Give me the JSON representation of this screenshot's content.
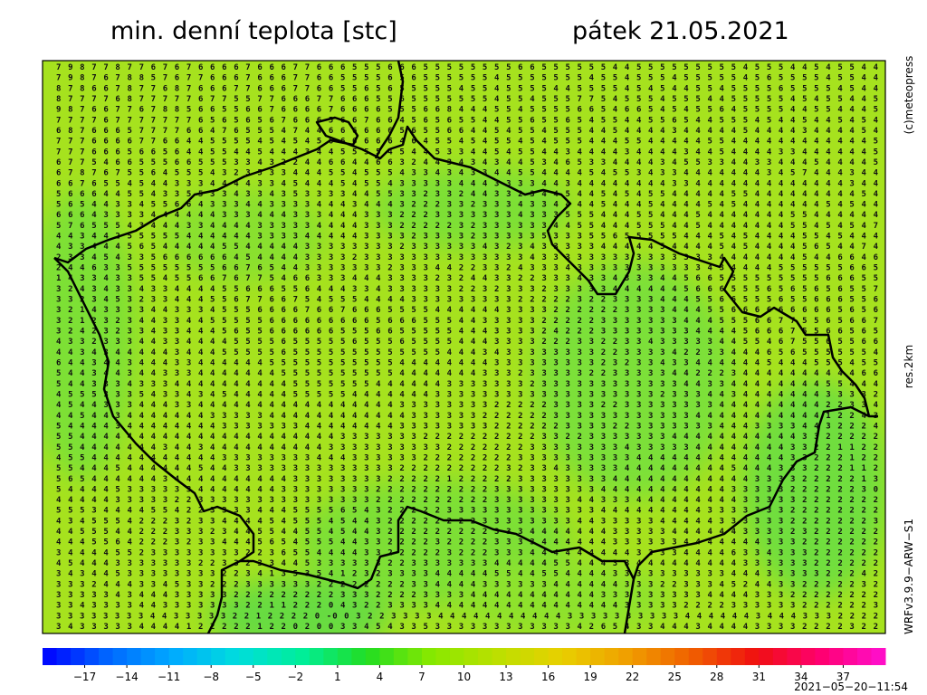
{
  "header": {
    "title": "min. denní teplota [stc]",
    "date": "pátek 21.05.2021"
  },
  "side_labels": {
    "copyright": "(c)meteopress",
    "resolution": "res.2km",
    "model": "WRFv3.9.9−ARW−S1"
  },
  "timestamp": "2021−05−20−11:54",
  "map": {
    "grid_rows": [
      "7 9 8 7 7 8 7 7 6 7 6 7 6 6 6 6 7 6 6 6 7 7 6 6 6 5 5 5 6 6 6 5 5 5 5 5 5 5 5 6 6 5 5 5 5 5 5 4 4 5 5 5 5 5 5 5 5 5 4 5 5 5 4 4 5 4 5 5 4 4",
      "7 9 8 7 6 7 8 8 5 7 6 7 7 6 6 6 7 6 6 6 7 7 6 6 5 5 5 5 6 5 6 5 5 5 5 5 5 4 5 5 5 5 5 5 5 4 5 5 4 5 5 5 4 5 5 5 5 5 4 5 6 5 5 5 5 4 5 5 4 4",
      "8 7 8 6 6 7 8 7 7 6 8 7 6 6 6 7 7 6 6 6 7 7 6 6 5 5 6 5 6 5 5 5 5 5 4 5 5 4 5 5 5 5 4 4 5 5 5 5 4 5 4 5 4 4 5 5 4 5 5 5 5 6 5 5 5 5 4 5 4 4",
      "8 7 7 7 7 6 8 7 7 7 7 7 6 7 7 5 5 7 7 6 6 6 7 7 6 6 6 5 5 6 5 5 5 5 5 5 5 4 5 5 4 5 5 5 7 7 5 4 5 5 5 4 5 5 5 4 4 5 5 5 5 5 4 5 4 5 5 4 4 5",
      "9 8 7 6 6 7 7 6 7 8 8 5 6 6 5 5 6 6 7 6 6 6 6 7 6 6 6 6 5 5 5 6 6 8 4 4 4 5 5 4 5 5 5 5 6 6 5 4 6 6 5 4 5 4 5 5 6 4 5 5 5 5 4 4 5 5 4 4 4 5",
      "7 7 7 7 6 7 7 7 7 7 7 7 6 5 6 5 6 5 6 7 6 6 6 5 6 6 7 6 6 4 5 6 5 6 5 5 4 4 5 5 6 5 5 6 5 4 5 5 4 4 5 5 6 5 4 4 5 5 5 4 5 4 4 5 4 4 5 4 5 4",
      "6 8 7 6 6 6 5 7 7 7 7 6 6 4 7 6 5 5 5 4 7 4 4 6 6 6 6 6 6 5 6 5 5 6 6 4 4 5 4 5 5 4 5 5 5 4 4 5 4 4 4 4 3 4 4 4 4 4 5 4 4 4 4 3 4 4 4 4 5 4",
      "7 7 7 6 6 6 6 7 7 6 6 4 4 5 5 5 5 4 5 4 5 4 5 6 6 6 6 6 6 4 6 4 5 5 4 5 4 5 5 4 5 4 5 5 5 4 4 4 5 5 4 4 4 4 4 5 5 4 4 4 4 4 4 4 4 4 4 4 4 5",
      "7 7 7 6 6 6 5 6 6 5 6 4 4 5 5 4 4 5 4 4 4 3 4 4 5 5 5 5 4 5 4 4 5 3 3 4 4 5 4 5 5 4 4 3 4 4 4 4 3 4 4 4 4 3 4 4 5 4 4 4 4 3 3 4 4 4 4 4 4 5",
      "6 7 7 5 4 6 6 5 5 5 6 6 5 5 5 3 3 4 3 2 2 4 4 6 6 4 4 6 6 3 2 4 4 3 4 3 4 3 4 4 5 3 4 6 5 3 3 4 4 4 4 3 4 5 5 3 3 4 4 3 3 4 4 4 5 4 4 4 4 5",
      "6 7 8 7 6 7 5 5 6 4 5 5 5 4 3 2 3 5 3 3 4 4 4 5 5 4 5 5 5 4 3 3 4 3 4 3 3 4 4 5 5 4 4 4 4 5 4 5 5 3 4 3 3 4 4 4 4 4 4 4 3 4 5 7 4 4 4 3 4 4",
      "6 6 7 6 5 5 4 5 4 4 3 3 3 4 4 4 4 3 3 4 5 4 4 4 5 4 5 5 4 3 3 3 3 3 4 4 4 3 3 3 3 4 4 3 4 4 4 4 4 4 4 4 3 3 4 4 4 4 4 4 4 4 4 4 4 4 4 3 4 4",
      "5 6 6 6 4 4 5 5 4 3 3 5 5 3 3 4 3 3 4 3 5 3 3 3 3 4 4 5 5 3 3 2 3 3 2 4 4 3 3 2 3 4 4 5 4 4 5 4 5 4 5 5 4 4 4 4 4 5 5 4 4 4 4 4 4 4 4 4 5 4",
      "5 6 5 4 4 3 3 4 5 5 6 6 4 3 3 3 4 4 3 3 3 3 4 4 4 3 4 4 4 3 2 2 2 3 3 2 3 3 3 4 3 3 4 4 4 4 5 4 4 4 5 4 4 4 4 5 4 5 4 4 4 4 4 4 4 5 4 5 4 4",
      "6 6 6 4 3 3 3 3 4 4 4 4 4 4 3 3 3 4 4 4 3 3 3 4 4 4 3 3 3 2 2 2 3 3 3 3 3 3 3 4 3 3 3 5 5 5 4 4 4 5 5 4 4 4 5 4 4 4 4 4 4 4 5 5 4 4 4 4 4 4",
      "5 7 6 5 5 5 4 3 4 4 4 3 3 4 4 4 4 3 3 3 3 3 4 4 4 4 3 3 3 2 2 2 2 2 3 2 3 3 3 3 3 3 4 4 5 5 4 4 4 5 5 5 4 4 5 4 4 4 4 4 4 4 5 5 4 5 4 5 4 7",
      "4 4 3 4 4 2 5 5 5 5 5 4 4 4 4 4 4 3 3 3 3 4 4 4 4 4 3 3 3 3 2 3 3 3 3 2 3 3 3 3 3 5 3 3 3 5 5 6 5 5 5 5 5 4 4 4 5 4 5 4 4 4 4 5 5 4 5 4 4 4",
      "4 3 3 4 4 4 5 6 5 4 4 4 4 4 5 5 4 4 4 4 4 3 3 3 3 3 3 3 3 2 3 3 3 3 3 3 4 3 2 3 4 3 3 3 3 3 4 4 4 4 4 5 4 4 4 4 5 4 5 4 4 4 4 5 6 5 4 4 7 4",
      "2 3 3 4 5 4 3 3 5 6 6 6 6 6 6 4 5 4 4 4 4 3 3 3 3 2 3 3 3 3 3 3 3 3 3 3 3 3 3 3 4 3 3 3 3 3 3 3 3 3 3 3 3 3 3 3 4 4 4 4 4 4 4 5 4 4 6 6 4 6",
      "2 4 4 6 3 3 5 5 5 5 5 5 5 5 6 6 7 6 5 4 4 3 3 3 3 3 3 3 2 3 3 3 4 4 2 2 3 3 2 4 3 3 3 4 3 3 3 3 3 3 3 3 3 3 3 4 3 4 4 4 4 5 5 5 5 5 5 6 6 5",
      "1 4 3 3 4 3 3 5 5 4 5 5 6 6 7 6 7 7 5 4 6 6 3 3 3 4 4 4 3 3 3 3 2 3 2 4 4 3 3 2 2 3 3 3 4 3 3 4 3 3 3 4 4 5 6 6 5 5 5 5 5 5 5 5 5 6 6 6 5 5",
      "3 2 4 3 4 3 3 4 3 3 4 4 4 4 5 5 6 6 6 5 5 6 4 4 4 3 3 4 3 3 3 3 3 3 2 2 3 2 3 3 3 2 3 3 3 3 3 4 4 4 4 4 4 5 6 6 6 5 5 5 6 5 6 5 6 5 6 5 5 7",
      "3 3 2 3 4 5 3 2 3 3 4 4 4 5 5 6 7 7 6 6 7 5 4 5 5 5 4 4 4 4 3 3 3 3 3 3 3 3 3 2 2 2 2 2 3 2 2 3 3 3 3 4 4 4 5 5 6 6 5 5 5 6 5 5 6 6 6 5 5 6",
      "3 2 1 4 3 3 3 3 4 4 3 3 3 4 5 5 5 6 6 6 6 7 6 6 7 6 6 6 5 5 5 5 4 4 4 4 4 4 3 3 3 3 2 2 2 2 2 2 3 3 3 3 4 4 4 5 5 6 6 6 6 6 6 6 6 6 5 6 5 6",
      "3 2 1 2 3 2 3 4 4 3 3 4 4 5 5 5 5 5 6 6 6 6 6 6 6 6 6 5 6 6 6 5 5 5 4 4 3 3 3 3 3 2 2 2 2 2 3 3 3 3 3 3 3 4 4 4 5 5 5 6 6 7 7 5 5 6 5 6 6 7",
      "3 2 4 2 3 2 3 3 4 3 3 4 4 4 5 6 5 5 6 6 6 6 6 6 5 5 5 6 6 5 5 5 5 5 4 4 4 3 3 3 3 2 4 2 2 2 3 3 3 3 3 3 3 3 4 4 4 4 5 6 6 6 7 5 5 6 6 5 6 5",
      "4 3 3 2 3 3 3 4 4 3 3 4 4 4 4 5 5 5 5 6 5 5 5 5 5 6 5 5 5 6 5 5 5 5 4 4 4 3 3 3 3 2 2 2 3 3 2 2 3 3 4 3 3 3 3 3 4 4 5 5 4 6 7 5 5 6 5 5 6 6",
      "4 4 3 4 3 4 4 4 4 4 3 4 4 4 5 5 5 5 5 6 5 5 5 5 5 5 5 5 5 5 5 5 5 4 4 4 3 4 3 3 3 3 3 3 3 3 2 2 3 3 3 3 4 2 2 3 3 4 4 4 6 5 6 5 5 5 5 5 5 4",
      "6 4 4 3 4 4 3 4 4 4 3 3 4 4 4 4 4 4 5 5 5 5 5 5 5 5 5 5 5 4 4 4 4 4 4 4 4 3 3 3 3 3 3 3 3 3 2 3 2 3 3 4 3 3 4 4 4 4 4 4 5 4 4 4 5 5 5 4 5 5",
      "5 4 4 3 4 4 3 4 4 3 3 3 4 4 4 4 4 4 4 5 5 5 5 5 5 5 5 5 5 4 4 4 4 4 4 4 3 3 3 2 3 3 3 3 3 2 2 3 3 3 3 3 4 4 2 2 2 3 4 4 4 4 4 4 4 4 4 4 6 6",
      "5 4 4 3 3 3 4 3 3 3 4 4 4 4 4 4 4 4 4 4 5 5 5 5 5 5 5 4 4 4 4 4 4 3 3 3 3 3 3 3 2 3 3 3 3 3 3 3 3 3 3 3 3 4 4 3 3 4 4 4 4 4 4 4 4 5 5 4 4 4",
      "4 5 5 5 3 3 3 5 4 3 3 4 3 4 5 4 4 4 4 4 5 5 5 5 5 4 4 4 4 4 4 4 3 3 3 3 3 3 3 3 3 3 3 3 3 3 3 3 3 3 3 2 3 3 3 4 4 3 4 4 4 4 4 4 4 3 3 3 3 2",
      "4 5 4 4 3 3 3 4 4 4 3 3 4 4 4 4 4 4 4 4 4 4 4 4 4 4 4 4 4 3 3 3 3 3 3 3 3 2 2 2 2 2 3 3 3 3 2 2 3 3 3 3 3 3 3 3 4 4 4 4 4 4 4 4 4 2 2 3 3 4",
      "4 4 5 4 4 3 4 4 4 4 4 4 4 3 3 3 3 3 4 4 4 4 4 4 4 4 4 4 4 4 3 3 3 3 3 3 2 2 2 2 2 2 3 3 3 3 3 3 3 3 3 3 3 3 4 4 4 4 4 4 4 4 4 4 4 1 2 2 4 3",
      "5 4 4 4 4 3 4 4 4 4 4 4 4 4 3 3 3 3 3 3 3 4 4 4 4 4 4 4 4 3 3 3 3 3 3 3 3 2 2 2 2 2 2 3 3 3 3 2 2 3 3 3 3 3 3 3 4 4 4 3 3 3 3 4 4 3 2 2 2 4",
      "5 5 4 4 4 4 4 4 4 4 4 4 4 4 4 4 4 4 4 4 4 4 4 4 3 3 3 3 3 3 3 2 2 2 2 2 2 2 2 2 2 3 3 2 2 3 3 3 3 3 3 3 4 4 4 4 4 4 4 4 4 4 4 3 3 2 2 2 2 2",
      "5 5 4 4 4 4 4 4 4 3 4 4 3 4 4 4 4 4 4 4 4 4 4 3 3 3 3 3 3 3 3 3 3 2 2 2 2 2 2 2 3 3 3 3 3 3 3 3 4 3 3 3 3 3 4 4 4 4 4 4 4 4 3 3 2 2 1 1 2 2",
      "4 5 5 4 4 4 4 4 4 4 4 4 4 4 3 3 3 3 3 3 3 3 4 4 4 3 3 3 3 3 3 2 2 2 2 2 2 2 2 3 3 3 3 3 3 3 3 3 3 4 4 4 4 4 4 4 4 4 4 4 4 4 3 3 2 2 2 1 2 2",
      "5 5 4 4 4 5 4 4 4 4 4 4 5 4 4 3 3 3 3 3 3 3 3 3 3 3 3 3 3 2 2 2 2 2 2 2 2 2 3 2 3 3 4 3 3 3 3 3 4 4 4 4 4 4 4 4 4 5 4 4 4 3 3 3 2 2 2 1 1 2",
      "5 6 5 4 4 4 4 4 4 3 4 4 4 4 4 4 4 4 4 4 3 3 3 3 3 3 3 3 2 2 2 2 2 1 2 2 2 2 2 3 3 3 3 3 3 3 3 4 4 4 4 4 4 4 4 4 4 4 4 3 3 3 3 2 2 2 2 2 1 3",
      "5 4 4 4 4 5 3 3 3 3 3 3 4 4 4 4 4 4 4 3 3 3 3 3 3 3 3 2 2 2 2 2 2 2 2 2 2 3 3 3 3 3 3 3 3 3 4 4 4 4 4 4 4 4 4 4 4 3 3 3 3 3 2 2 2 2 2 2 3 0",
      "4 4 4 4 4 3 3 3 3 3 2 2 3 3 3 3 3 3 3 3 3 3 3 3 3 3 3 2 2 2 2 2 2 2 2 2 2 3 3 3 3 3 3 3 4 4 3 3 3 4 4 4 4 4 4 4 4 4 3 3 3 3 3 2 2 2 2 2 2 2",
      "5 5 5 3 4 4 4 4 5 5 4 2 2 3 3 3 3 4 4 4 5 5 5 5 6 5 4 3 2 2 2 2 2 3 3 3 3 3 3 3 3 3 3 3 3 3 4 4 4 4 4 4 4 4 4 3 3 3 3 3 3 3 2 2 2 2 2 2 2 2",
      "4 3 4 5 5 5 4 2 2 2 3 2 3 3 4 4 4 4 5 4 5 5 5 4 5 4 4 3 2 2 2 2 2 2 2 2 3 3 3 3 3 3 3 3 4 4 3 3 3 3 3 4 4 4 4 4 3 3 3 3 3 3 2 2 2 2 2 2 2 3",
      "4 4 5 5 5 4 4 2 2 2 3 3 3 2 3 4 4 5 5 4 4 5 5 4 5 4 4 3 2 2 2 2 2 2 2 2 2 3 3 3 4 4 4 4 4 4 4 3 3 3 3 3 4 4 4 4 4 4 3 3 3 3 2 3 2 2 2 2 2 2",
      "4 4 4 5 5 6 4 2 2 2 3 2 3 3 4 4 4 5 6 5 4 5 5 5 4 4 3 3 2 2 2 2 3 2 2 2 2 3 3 3 3 4 4 4 4 4 4 3 3 3 3 3 3 4 4 4 4 4 4 4 3 3 3 2 2 2 2 2 2 2",
      "3 4 4 4 4 5 5 2 3 3 3 3 3 3 3 3 2 2 3 6 5 5 4 4 4 4 3 3 2 2 2 2 2 3 2 2 2 3 3 3 4 4 4 4 4 4 4 4 4 3 3 3 3 4 4 4 4 6 3 3 4 3 3 3 2 2 2 2 2 2",
      "4 5 4 4 4 3 3 3 3 3 3 3 2 2 3 3 2 3 3 4 4 5 3 3 3 3 3 3 2 2 3 3 3 3 3 3 3 4 4 4 4 4 5 5 4 4 4 3 3 4 4 4 4 4 4 4 4 4 3 3 3 3 3 3 2 2 2 2 2 2",
      "3 4 3 4 4 5 3 3 3 3 3 3 3 3 2 2 3 4 1 3 5 3 5 4 1 2 3 2 3 3 3 3 4 4 4 4 4 5 5 4 4 5 5 4 4 4 4 3 3 3 3 3 3 3 3 3 3 4 4 4 3 3 3 3 3 2 2 2 4 2",
      "3 3 3 2 4 4 4 3 3 4 5 3 3 2 2 2 3 3 3 3 3 3 2 2 2 2 2 2 2 2 3 3 4 4 4 4 3 3 3 3 3 3 4 4 4 4 4 4 3 3 3 2 2 3 3 3 4 5 2 4 4 3 3 2 2 2 2 2 3 2",
      "3 3 3 3 3 4 3 4 4 4 3 3 3 3 3 2 2 2 2 2 2 2 2 2 3 3 3 2 2 2 2 3 3 3 3 4 4 4 4 4 4 4 4 4 4 4 3 3 3 3 3 3 3 3 3 4 4 4 4 3 3 3 2 2 2 2 2 2 2 2",
      "3 3 4 3 3 3 3 4 4 3 3 3 3 3 3 3 2 2 1 1 2 2 2 0 4 3 2 2 3 3 3 3 4 4 4 4 4 4 4 4 4 4 4 4 4 4 4 4 3 3 3 3 3 2 2 2 2 3 3 3 3 3 3 2 2 2 2 2 2 3",
      "3 3 3 3 3 3 3 3 4 4 3 3 3 3 3 2 2 1 2 2 2 2 0 -0 0 3 2 2 3 3 3 3 4 4 4 4 4 4 4 4 4 4 4 3 3 3 3 3 3 3 3 3 3 4 4 4 4 4 4 3 4 4 4 3 3 3 2 2 2 2",
      "3 4 3 3 3 3 3 4 4 4 4 1 2 2 2 2 2 1 2 2 0 2 0 0 3 3 4 5 4 3 3 5 3 3 3 3 3 3 3 3 3 3 3 3 4 2 6 5 4 3 3 4 4 4 3 4 4 4 4 3 3 3 3 2 2 2 2 3 2 2"
    ]
  },
  "colorbar": {
    "range": [
      -20,
      40
    ],
    "colors": [
      "#0000ff",
      "#0066ff",
      "#00aaff",
      "#00dddd",
      "#00ee99",
      "#22dd22",
      "#88e800",
      "#bbe000",
      "#e8d000",
      "#f0a000",
      "#f06000",
      "#f01010",
      "#ff0070",
      "#ff10d0"
    ],
    "ticks": [
      {
        "value": -17,
        "label": "−17"
      },
      {
        "value": -14,
        "label": "−14"
      },
      {
        "value": -11,
        "label": "−11"
      },
      {
        "value": -8,
        "label": "−8"
      },
      {
        "value": -5,
        "label": "−5"
      },
      {
        "value": -2,
        "label": "−2"
      },
      1,
      4,
      7,
      10,
      13,
      16,
      19,
      22,
      25,
      28,
      31,
      34,
      37
    ]
  }
}
